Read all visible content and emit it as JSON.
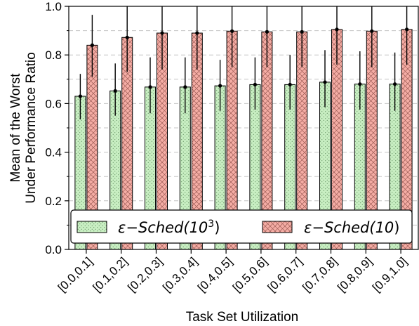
{
  "chart_data": {
    "type": "bar",
    "xlabel": "Task Set Utilization",
    "ylabel_lines": [
      "Mean of the Worst",
      "Under Performance Ratio"
    ],
    "categories": [
      "[0.0,0.1]",
      "[0.1,0.2]",
      "[0.2,0.3]",
      "[0.3,0.4]",
      "[0.4,0.5]",
      "[0.5,0.6]",
      "[0.6,0.7]",
      "[0.7,0.8]",
      "[0.8,0.9]",
      "[0.9,1.0]"
    ],
    "ylim": [
      0,
      1.0
    ],
    "yticks": [
      "0.0",
      "0.2",
      "0.4",
      "0.6",
      "0.8",
      "1.0"
    ],
    "grid": "y-dashed",
    "legend_position": "lower-center",
    "series": [
      {
        "name": "ε−Sched(10³)",
        "name_prefix": "ε−Sched(10",
        "name_sup": "3",
        "name_suffix": ")",
        "color": "#c8eec2",
        "hatch": "dots",
        "values": [
          0.63,
          0.652,
          0.668,
          0.668,
          0.673,
          0.678,
          0.678,
          0.688,
          0.68,
          0.68
        ],
        "err_low": [
          0.535,
          0.55,
          0.56,
          0.56,
          0.57,
          0.575,
          0.575,
          0.585,
          0.575,
          0.57
        ],
        "err_high": [
          0.722,
          0.765,
          0.79,
          0.79,
          0.78,
          0.79,
          0.8,
          0.82,
          0.815,
          0.81
        ]
      },
      {
        "name": "ε−Sched(10)",
        "name_prefix": "ε−Sched(10",
        "name_sup": "",
        "name_suffix": ")",
        "color": "#f4aca4",
        "hatch": "crosshatch",
        "values": [
          0.84,
          0.872,
          0.89,
          0.89,
          0.898,
          0.895,
          0.895,
          0.905,
          0.898,
          0.905
        ],
        "err_low": [
          0.71,
          0.73,
          0.74,
          0.74,
          0.75,
          0.75,
          0.75,
          0.76,
          0.75,
          0.76
        ],
        "err_high": [
          0.965,
          1.0,
          1.0,
          1.0,
          1.0,
          1.0,
          1.0,
          1.0,
          1.0,
          1.0
        ]
      }
    ]
  }
}
